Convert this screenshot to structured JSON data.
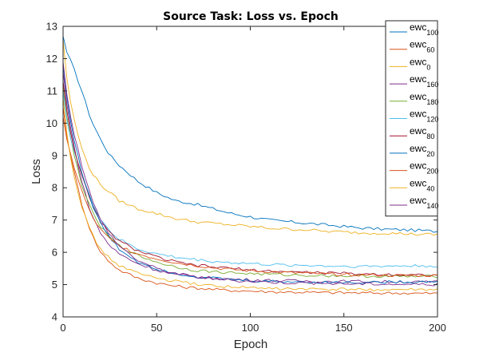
{
  "chart_data": {
    "type": "line",
    "title": "Source Task: Loss vs. Epoch",
    "xlabel": "Epoch",
    "ylabel": "Loss",
    "xlim": [
      0,
      200
    ],
    "ylim": [
      4,
      13
    ],
    "xticks": [
      0,
      50,
      100,
      150,
      200
    ],
    "yticks": [
      4,
      5,
      6,
      7,
      8,
      9,
      10,
      11,
      12,
      13
    ],
    "grid": false,
    "legend_position": "top-right",
    "sample_epochs": [
      0,
      2,
      5,
      10,
      15,
      20,
      25,
      30,
      40,
      50,
      60,
      70,
      80,
      90,
      100,
      110,
      120,
      130,
      140,
      150,
      160,
      170,
      180,
      190,
      200
    ],
    "series": [
      {
        "base": "ewc",
        "sub": "100",
        "color": "#0072BD",
        "values": [
          12.7,
          12.2,
          11.8,
          11.0,
          10.1,
          9.5,
          9.0,
          8.7,
          8.2,
          7.85,
          7.6,
          7.5,
          7.35,
          7.2,
          7.1,
          7.0,
          6.95,
          6.9,
          6.85,
          6.8,
          6.75,
          6.72,
          6.7,
          6.68,
          6.65
        ]
      },
      {
        "base": "ewc",
        "sub": "60",
        "color": "#D95319",
        "values": [
          10.5,
          9.6,
          8.7,
          7.5,
          6.6,
          6.0,
          5.7,
          5.45,
          5.2,
          5.05,
          4.95,
          4.9,
          4.85,
          4.82,
          4.8,
          4.78,
          4.77,
          4.76,
          4.75,
          4.75,
          4.74,
          4.74,
          4.74,
          4.73,
          4.73
        ]
      },
      {
        "base": "ewc",
        "sub": "0",
        "color": "#EDB120",
        "values": [
          12.6,
          11.4,
          10.3,
          9.2,
          8.5,
          8.1,
          7.85,
          7.6,
          7.35,
          7.2,
          7.05,
          6.95,
          6.9,
          6.85,
          6.8,
          6.75,
          6.72,
          6.7,
          6.65,
          6.63,
          6.6,
          6.6,
          6.58,
          6.56,
          6.55
        ]
      },
      {
        "base": "ewc",
        "sub": "160",
        "color": "#7E2F8E",
        "values": [
          11.6,
          10.6,
          9.5,
          8.2,
          7.2,
          6.6,
          6.2,
          5.95,
          5.65,
          5.45,
          5.3,
          5.25,
          5.2,
          5.17,
          5.15,
          5.13,
          5.12,
          5.11,
          5.1,
          5.1,
          5.1,
          5.09,
          5.09,
          5.08,
          5.08
        ]
      },
      {
        "base": "ewc",
        "sub": "180",
        "color": "#77AC30",
        "values": [
          11.2,
          10.2,
          9.2,
          8.1,
          7.3,
          6.8,
          6.45,
          6.2,
          5.9,
          5.7,
          5.55,
          5.45,
          5.4,
          5.37,
          5.34,
          5.32,
          5.3,
          5.29,
          5.28,
          5.27,
          5.26,
          5.26,
          5.25,
          5.25,
          5.25
        ]
      },
      {
        "base": "ewc",
        "sub": "120",
        "color": "#4DBEEE",
        "values": [
          11.0,
          10.1,
          9.3,
          8.4,
          7.6,
          7.05,
          6.65,
          6.4,
          6.1,
          5.95,
          5.85,
          5.78,
          5.72,
          5.68,
          5.65,
          5.62,
          5.6,
          5.6,
          5.58,
          5.57,
          5.57,
          5.57,
          5.58,
          5.58,
          5.58
        ]
      },
      {
        "base": "ewc",
        "sub": "80",
        "color": "#A2142F",
        "values": [
          11.3,
          10.4,
          9.4,
          8.4,
          7.5,
          6.95,
          6.6,
          6.35,
          6.05,
          5.85,
          5.7,
          5.6,
          5.55,
          5.5,
          5.45,
          5.42,
          5.4,
          5.38,
          5.36,
          5.35,
          5.33,
          5.32,
          5.31,
          5.3,
          5.3
        ]
      },
      {
        "base": "ewc",
        "sub": "20",
        "color": "#0072BD",
        "values": [
          11.8,
          10.8,
          9.7,
          8.5,
          7.55,
          6.9,
          6.45,
          6.1,
          5.7,
          5.5,
          5.35,
          5.25,
          5.2,
          5.15,
          5.12,
          5.1,
          5.09,
          5.08,
          5.07,
          5.07,
          5.07,
          5.08,
          5.08,
          5.09,
          5.1
        ]
      },
      {
        "base": "ewc",
        "sub": "200",
        "color": "#D95319",
        "values": [
          10.2,
          9.5,
          8.8,
          7.9,
          7.15,
          6.7,
          6.4,
          6.2,
          5.95,
          5.8,
          5.68,
          5.6,
          5.52,
          5.47,
          5.43,
          5.4,
          5.37,
          5.35,
          5.33,
          5.31,
          5.3,
          5.29,
          5.28,
          5.28,
          5.28
        ]
      },
      {
        "base": "ewc",
        "sub": "40",
        "color": "#EDB120",
        "values": [
          10.8,
          9.7,
          8.6,
          7.4,
          6.6,
          6.1,
          5.8,
          5.6,
          5.35,
          5.2,
          5.1,
          5.02,
          4.97,
          4.93,
          4.9,
          4.88,
          4.87,
          4.86,
          4.85,
          4.85,
          4.85,
          4.84,
          4.84,
          4.84,
          4.84
        ]
      },
      {
        "base": "ewc",
        "sub": "140",
        "color": "#7E2F8E",
        "values": [
          11.9,
          10.9,
          9.9,
          8.7,
          7.7,
          7.0,
          6.55,
          6.2,
          5.75,
          5.5,
          5.35,
          5.25,
          5.18,
          5.13,
          5.1,
          5.08,
          5.06,
          5.05,
          5.04,
          5.03,
          5.02,
          5.02,
          5.01,
          5.01,
          5.0
        ]
      }
    ]
  }
}
